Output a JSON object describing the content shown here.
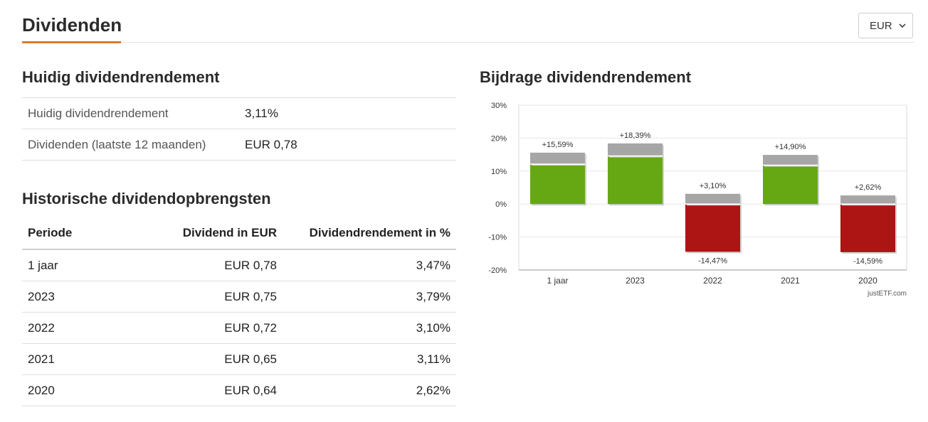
{
  "header": {
    "title": "Dividenden",
    "currency": "EUR"
  },
  "current": {
    "title": "Huidig dividendrendement",
    "rows": [
      {
        "label": "Huidig dividendrendement",
        "value": "3,11%"
      },
      {
        "label": "Dividenden (laatste 12 maanden)",
        "value": "EUR 0,78"
      }
    ]
  },
  "history": {
    "title": "Historische dividendopbrengsten",
    "columns": [
      "Periode",
      "Dividend in EUR",
      "Dividendrendement in %"
    ],
    "rows": [
      {
        "period": "1 jaar",
        "dividend": "EUR 0,78",
        "yield": "3,47%"
      },
      {
        "period": "2023",
        "dividend": "EUR 0,75",
        "yield": "3,79%"
      },
      {
        "period": "2022",
        "dividend": "EUR 0,72",
        "yield": "3,10%"
      },
      {
        "period": "2021",
        "dividend": "EUR 0,65",
        "yield": "3,11%"
      },
      {
        "period": "2020",
        "dividend": "EUR 0,64",
        "yield": "2,62%"
      }
    ]
  },
  "chart_data": {
    "type": "bar",
    "title": "Bijdrage dividendrendement",
    "categories": [
      "1 jaar",
      "2023",
      "2022",
      "2021",
      "2020"
    ],
    "series": [
      {
        "values": [
          12.12,
          14.6,
          -14.47,
          11.79,
          -14.59
        ]
      },
      {
        "values": [
          3.47,
          3.79,
          3.1,
          3.11,
          2.62
        ]
      }
    ],
    "totals": [
      15.59,
      18.39,
      -11.37,
      14.9,
      -11.97
    ],
    "labels_top": [
      "+15,59%",
      "+18,39%",
      "+3,10%",
      "+14,90%",
      "+2,62%"
    ],
    "labels_bottom": [
      "",
      "",
      "-14,47%",
      "",
      "-14,59%"
    ],
    "yticks": [
      30,
      20,
      10,
      0,
      -10,
      -20
    ],
    "ytick_labels": [
      "30%",
      "20%",
      "10%",
      "0%",
      "-10%",
      "-20%"
    ],
    "ylim": [
      -20,
      30
    ],
    "grid": true,
    "credit": "justETF.com",
    "colors": {
      "positive": "#66a814",
      "negative": "#ad1414",
      "dividend": "#a6a6a6"
    }
  }
}
